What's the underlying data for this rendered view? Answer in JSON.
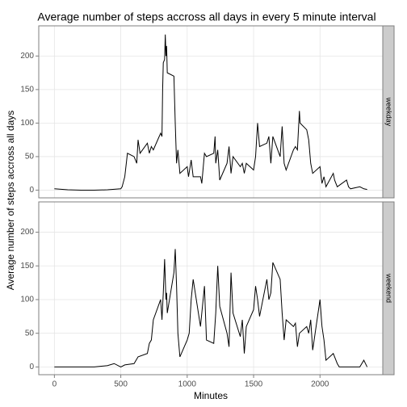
{
  "chart_data": {
    "type": "line",
    "title": "Average number of steps accross all days in every 5 minute interval",
    "xlabel": "Minutes",
    "ylabel": "Average number of steps accross all days",
    "xlim": [
      -117.75,
      2472.75
    ],
    "xticks": [
      0,
      500,
      1000,
      1500,
      2000
    ],
    "ylim": [
      -11.5,
      245
    ],
    "yticks": [
      0,
      50,
      100,
      150,
      200
    ],
    "grid": true,
    "series": [
      {
        "name": "weekday",
        "color": "#000000",
        "x": [
          0,
          100,
          200,
          300,
          400,
          500,
          510,
          530,
          550,
          600,
          620,
          630,
          645,
          700,
          715,
          730,
          745,
          800,
          810,
          815,
          820,
          830,
          835,
          840,
          845,
          850,
          900,
          910,
          915,
          920,
          930,
          945,
          1000,
          1010,
          1030,
          1045,
          1100,
          1110,
          1130,
          1145,
          1200,
          1210,
          1215,
          1230,
          1245,
          1300,
          1315,
          1330,
          1345,
          1400,
          1415,
          1430,
          1445,
          1500,
          1515,
          1530,
          1545,
          1600,
          1615,
          1630,
          1645,
          1700,
          1715,
          1730,
          1745,
          1800,
          1815,
          1830,
          1845,
          1850,
          1900,
          1915,
          1930,
          1945,
          2000,
          2015,
          2030,
          2045,
          2100,
          2110,
          2130,
          2200,
          2215,
          2230,
          2300,
          2330,
          2355
        ],
        "values": [
          2,
          0.5,
          0,
          0,
          0.5,
          2,
          5,
          20,
          55,
          50,
          40,
          75,
          55,
          70,
          55,
          65,
          60,
          85,
          80,
          150,
          190,
          195,
          232,
          200,
          215,
          175,
          170,
          100,
          70,
          40,
          60,
          25,
          35,
          20,
          45,
          20,
          20,
          10,
          55,
          50,
          55,
          80,
          40,
          60,
          15,
          40,
          65,
          25,
          50,
          35,
          40,
          25,
          40,
          30,
          50,
          100,
          65,
          70,
          80,
          40,
          80,
          50,
          95,
          40,
          30,
          60,
          65,
          60,
          118,
          100,
          90,
          75,
          40,
          25,
          35,
          10,
          20,
          5,
          25,
          15,
          5,
          15,
          5,
          2,
          5,
          2,
          1
        ]
      },
      {
        "name": "weekend",
        "color": "#000000",
        "x": [
          0,
          100,
          200,
          300,
          400,
          450,
          500,
          530,
          600,
          630,
          700,
          715,
          730,
          745,
          800,
          810,
          820,
          830,
          840,
          845,
          850,
          900,
          910,
          920,
          930,
          945,
          1000,
          1015,
          1030,
          1045,
          1100,
          1115,
          1130,
          1145,
          1200,
          1215,
          1230,
          1245,
          1300,
          1315,
          1330,
          1345,
          1400,
          1415,
          1430,
          1445,
          1500,
          1515,
          1530,
          1545,
          1600,
          1615,
          1630,
          1645,
          1700,
          1715,
          1730,
          1745,
          1800,
          1815,
          1830,
          1845,
          1900,
          1915,
          1930,
          1945,
          2000,
          2015,
          2030,
          2045,
          2100,
          2130,
          2145,
          2200,
          2300,
          2330,
          2355
        ],
        "values": [
          0,
          0,
          0,
          0,
          2,
          5,
          0,
          3,
          5,
          15,
          20,
          35,
          40,
          70,
          100,
          70,
          110,
          160,
          100,
          110,
          80,
          140,
          175,
          120,
          50,
          15,
          40,
          50,
          100,
          130,
          60,
          90,
          120,
          40,
          35,
          80,
          150,
          90,
          50,
          30,
          140,
          80,
          45,
          70,
          20,
          60,
          85,
          120,
          100,
          75,
          130,
          100,
          110,
          155,
          130,
          80,
          40,
          70,
          60,
          65,
          30,
          50,
          60,
          50,
          70,
          25,
          100,
          60,
          40,
          10,
          20,
          5,
          0,
          0,
          0,
          10,
          0
        ]
      }
    ]
  }
}
